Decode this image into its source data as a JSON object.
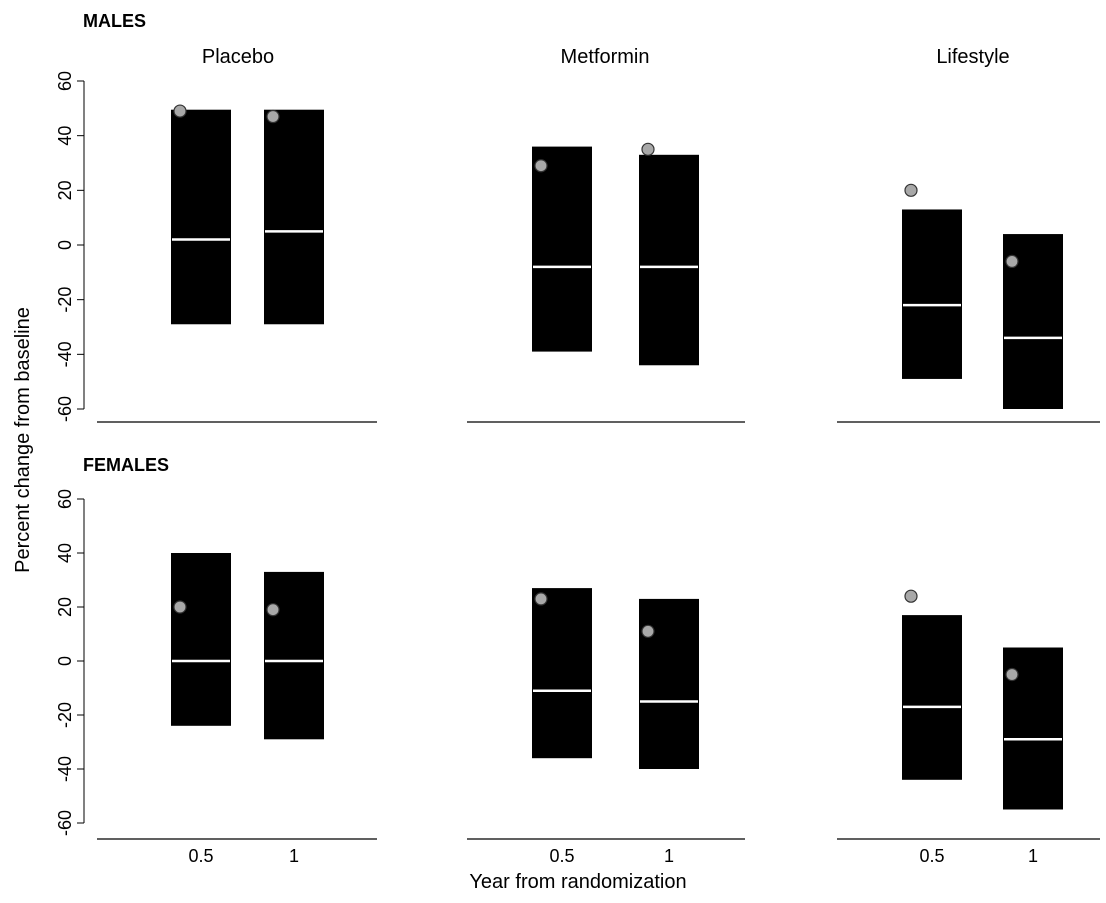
{
  "chart_data": {
    "type": "box",
    "rows": [
      {
        "label": "MALES"
      },
      {
        "label": "FEMALES"
      }
    ],
    "panels": [
      {
        "title": "Placebo"
      },
      {
        "title": "Metformin"
      },
      {
        "title": "Lifestyle"
      }
    ],
    "categories": [
      "0.5",
      "1"
    ],
    "xlabel": "Year from randomization",
    "ylabel": "Percent change from baseline",
    "yticks": [
      60,
      40,
      20,
      0,
      -20,
      -40,
      -60
    ],
    "ytick_labels": [
      "60",
      "40",
      "20",
      "0",
      "-20",
      "-40",
      "-60"
    ],
    "ylim": [
      -60,
      60
    ],
    "colors": {
      "box": "#000000",
      "median": "#ffffff",
      "marker": "#a8a8a8",
      "marker_stroke": "#333333"
    },
    "data": [
      [
        {
          "boxes": [
            {
              "x": "0.5",
              "low": -29,
              "high": 49.5,
              "median": 2,
              "point": 49
            },
            {
              "x": "1",
              "low": -29,
              "high": 49.5,
              "median": 5,
              "point": 47
            }
          ]
        },
        {
          "boxes": [
            {
              "x": "0.5",
              "low": -39,
              "high": 36,
              "median": -8,
              "point": 29
            },
            {
              "x": "1",
              "low": -44,
              "high": 33,
              "median": -8,
              "point": 35
            }
          ]
        },
        {
          "boxes": [
            {
              "x": "0.5",
              "low": -49,
              "high": 13,
              "median": -22,
              "point": 20
            },
            {
              "x": "1",
              "low": -60,
              "high": 4,
              "median": -34,
              "point": -6
            }
          ]
        }
      ],
      [
        {
          "boxes": [
            {
              "x": "0.5",
              "low": -24,
              "high": 40,
              "median": 0,
              "point": 20
            },
            {
              "x": "1",
              "low": -29,
              "high": 33,
              "median": 0,
              "point": 19
            }
          ]
        },
        {
          "boxes": [
            {
              "x": "0.5",
              "low": -36,
              "high": 27,
              "median": -11,
              "point": 23
            },
            {
              "x": "1",
              "low": -40,
              "high": 23,
              "median": -15,
              "point": 11
            }
          ]
        },
        {
          "boxes": [
            {
              "x": "0.5",
              "low": -44,
              "high": 17,
              "median": -17,
              "point": 24
            },
            {
              "x": "1",
              "low": -55,
              "high": 5,
              "median": -29,
              "point": -5
            }
          ]
        }
      ]
    ]
  }
}
